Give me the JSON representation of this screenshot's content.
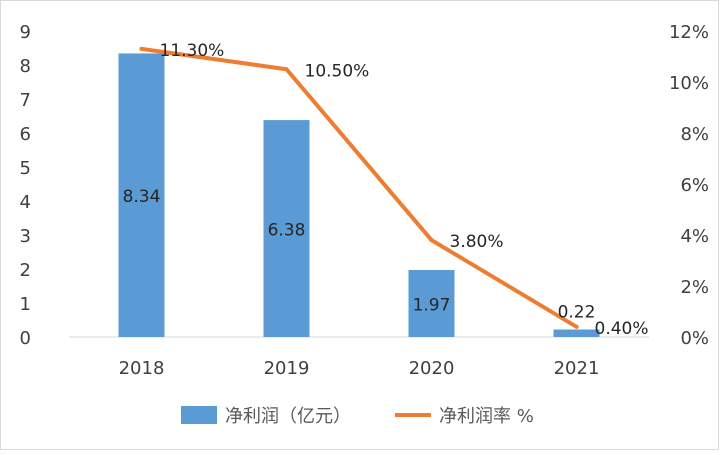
{
  "chart_data": {
    "type": "bar+line",
    "categories": [
      "2018",
      "2019",
      "2020",
      "2021"
    ],
    "series": [
      {
        "name": "净利润（亿元）",
        "type": "bar",
        "axis": "left",
        "color": "#5B9BD5",
        "values": [
          8.34,
          6.38,
          1.97,
          0.22
        ],
        "labels": [
          "8.34",
          "6.38",
          "1.97",
          "0.22"
        ]
      },
      {
        "name": "净利润率 %",
        "type": "line",
        "axis": "right",
        "color": "#ED7D31",
        "values": [
          11.3,
          10.5,
          3.8,
          0.4
        ],
        "labels": [
          "11.30%",
          "10.50%",
          "3.80%",
          "0.40%"
        ]
      }
    ],
    "y_left": {
      "min": 0,
      "max": 9,
      "step": 1,
      "ticks": [
        "0",
        "1",
        "2",
        "3",
        "4",
        "5",
        "6",
        "7",
        "8",
        "9"
      ]
    },
    "y_right": {
      "min": 0,
      "max": 12,
      "step": 2,
      "ticks": [
        "0%",
        "2%",
        "4%",
        "6%",
        "8%",
        "10%",
        "12%"
      ]
    },
    "legend": {
      "position": "bottom-center",
      "items": [
        "净利润（亿元）",
        "净利润率 %"
      ]
    },
    "grid": false
  }
}
